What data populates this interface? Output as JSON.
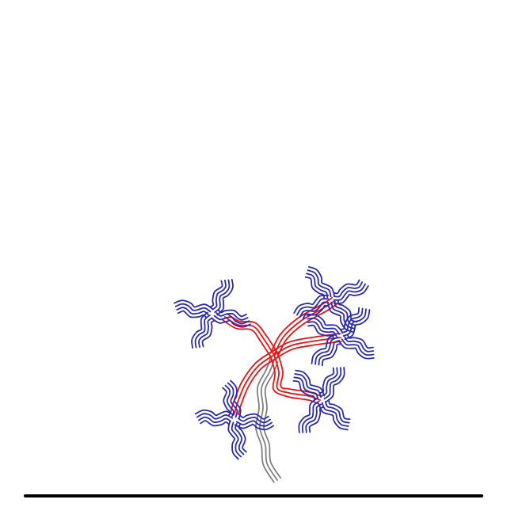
{
  "scene": {
    "background": "#ffffff",
    "colors": {
      "stem": "#808080",
      "branch": "#ee1111",
      "cluster": "#2a2ab8",
      "ground": "#000000"
    },
    "clusters": [
      "cluster-upper-left",
      "cluster-upper-right",
      "cluster-right",
      "cluster-lower-left",
      "cluster-lower-right"
    ]
  }
}
